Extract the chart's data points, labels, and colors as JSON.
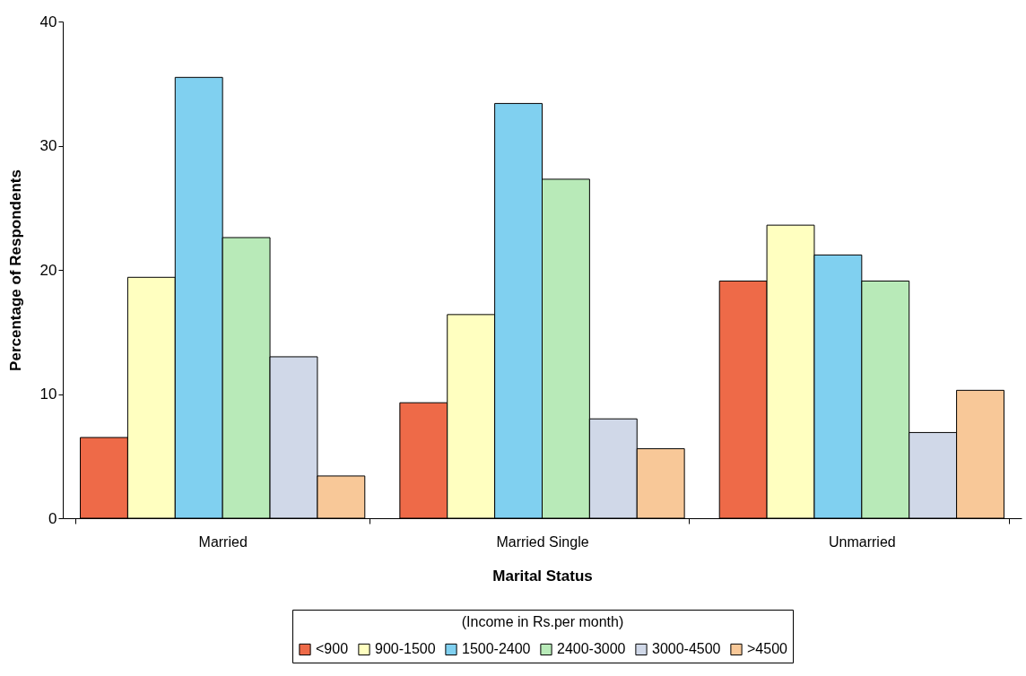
{
  "chart_data": {
    "type": "bar",
    "xlabel": "Marital Status",
    "ylabel": "Percentage of Respondents",
    "legend_title": "(Income in Rs.per month)",
    "categories": [
      "Married",
      "Married Single",
      "Unmarried"
    ],
    "series": [
      {
        "name": "<900",
        "color": "#ee6a48",
        "values": [
          6.5,
          9.3,
          19.1
        ]
      },
      {
        "name": "900-1500",
        "color": "#ffffc0",
        "values": [
          19.4,
          16.4,
          23.6
        ]
      },
      {
        "name": "1500-2400",
        "color": "#80d0f0",
        "values": [
          35.5,
          33.4,
          21.2
        ]
      },
      {
        "name": "2400-3000",
        "color": "#b8eab8",
        "values": [
          22.6,
          27.3,
          19.1
        ]
      },
      {
        "name": "3000-4500",
        "color": "#d0d8e8",
        "values": [
          13.0,
          8.0,
          6.9
        ]
      },
      {
        "name": ">4500",
        "color": "#f8c898",
        "values": [
          3.4,
          5.6,
          10.3
        ]
      }
    ],
    "ylim": [
      0,
      40
    ],
    "yticks": [
      0,
      10,
      20,
      30,
      40
    ],
    "grid": false,
    "legend": "bottom"
  }
}
